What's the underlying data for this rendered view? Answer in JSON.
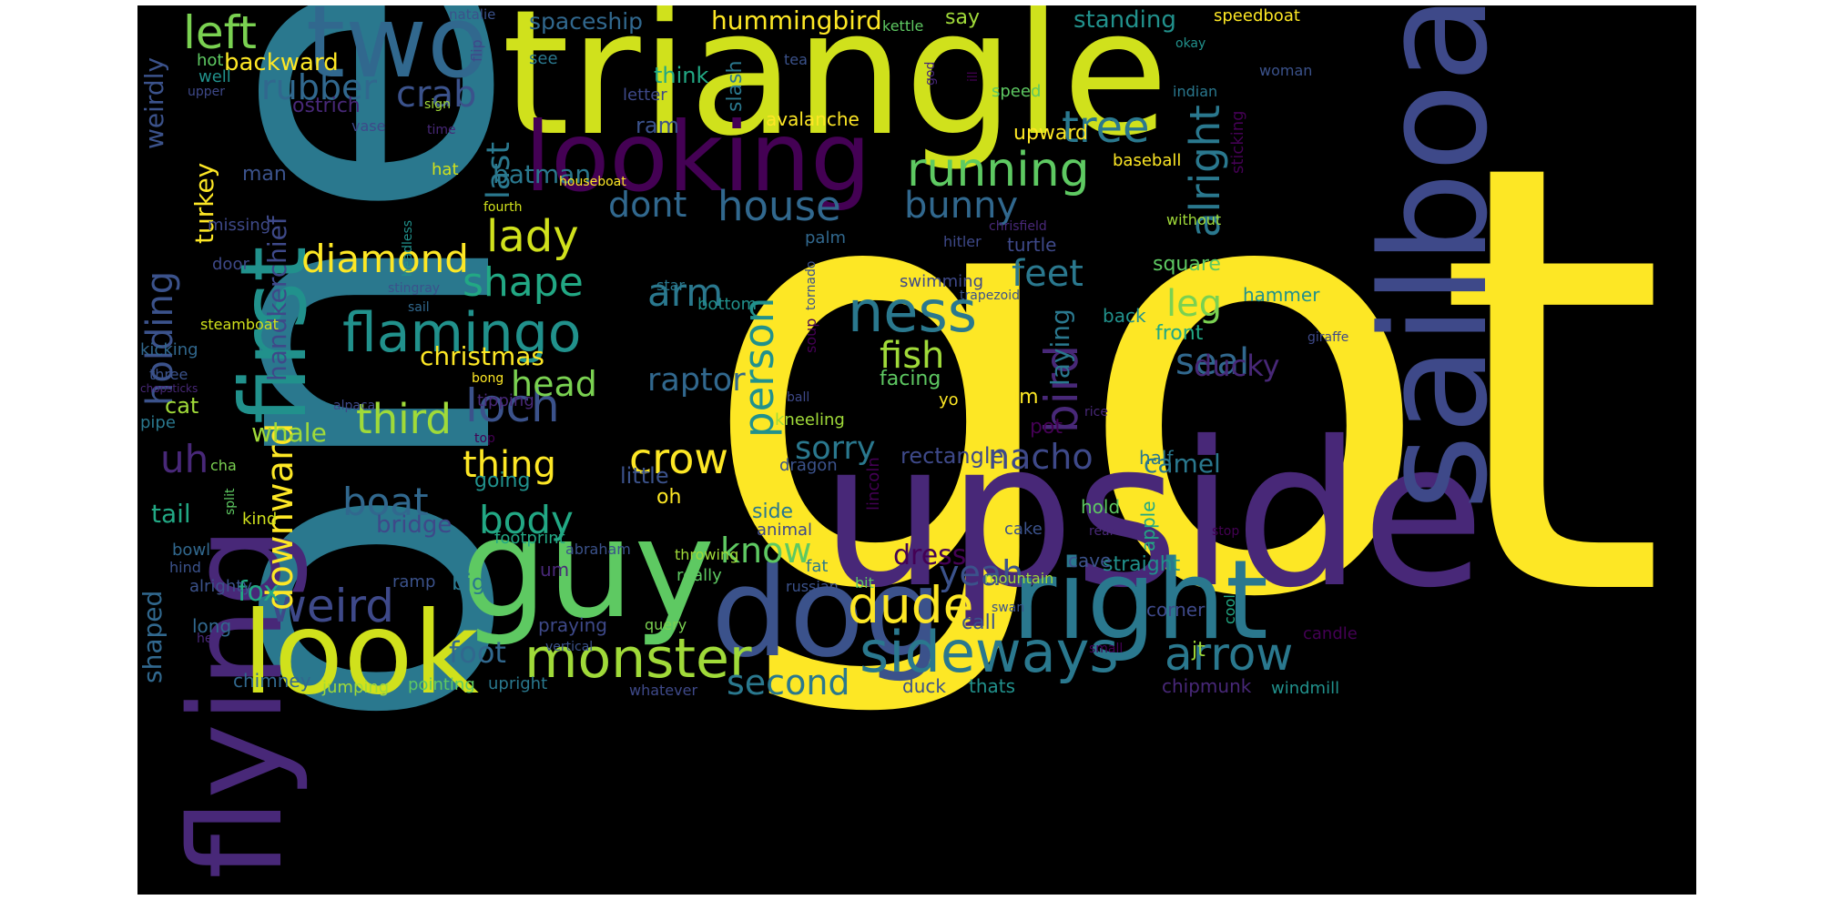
{
  "words": [
    {
      "text": "got",
      "color": "#fde725"
    },
    {
      "text": "one",
      "color": "#2a788e"
    },
    {
      "text": "upside",
      "color": "#482878"
    },
    {
      "text": "triangle",
      "color": "#d0e11c"
    },
    {
      "text": "guy",
      "color": "#5ec962"
    },
    {
      "text": "sailboat",
      "color": "#3e4989"
    },
    {
      "text": "flying",
      "color": "#482878"
    },
    {
      "text": "dog",
      "color": "#3b528b"
    },
    {
      "text": "look",
      "color": "#d0e11c"
    },
    {
      "text": "right",
      "color": "#2a788e"
    },
    {
      "text": "two",
      "color": "#31688e"
    },
    {
      "text": "looking",
      "color": "#440154"
    },
    {
      "text": "first",
      "color": "#21918c"
    },
    {
      "text": "monster",
      "color": "#a0da39"
    },
    {
      "text": "sideways",
      "color": "#2a788e"
    },
    {
      "text": "dude",
      "color": "#fde725"
    },
    {
      "text": "flamingo",
      "color": "#21918c"
    },
    {
      "text": "ness",
      "color": "#2a788e"
    },
    {
      "text": "running",
      "color": "#5ec962"
    },
    {
      "text": "house",
      "color": "#31688e"
    },
    {
      "text": "weird",
      "color": "#3e4989"
    },
    {
      "text": "arrow",
      "color": "#2a788e"
    },
    {
      "text": "left",
      "color": "#7ad151"
    },
    {
      "text": "loch",
      "color": "#3b528b"
    },
    {
      "text": "tree",
      "color": "#2a788e"
    },
    {
      "text": "lady",
      "color": "#d0e11c"
    },
    {
      "text": "third",
      "color": "#a0da39"
    },
    {
      "text": "diamond",
      "color": "#fde725"
    },
    {
      "text": "shape",
      "color": "#22a884"
    },
    {
      "text": "crow",
      "color": "#fde725"
    },
    {
      "text": "alright",
      "color": "#2a788e"
    },
    {
      "text": "holding",
      "color": "#3b528b"
    },
    {
      "text": "downward",
      "color": "#fde725"
    },
    {
      "text": "bird",
      "color": "#482878"
    },
    {
      "text": "person",
      "color": "#21918c"
    },
    {
      "text": "boat",
      "color": "#31688e"
    },
    {
      "text": "body",
      "color": "#22a884"
    },
    {
      "text": "arm",
      "color": "#2a788e"
    },
    {
      "text": "dont",
      "color": "#31688e"
    },
    {
      "text": "bunny",
      "color": "#31688e"
    },
    {
      "text": "thing",
      "color": "#fde725"
    },
    {
      "text": "head",
      "color": "#7ad151"
    },
    {
      "text": "crab",
      "color": "#3b528b"
    },
    {
      "text": "rubber",
      "color": "#31688e"
    },
    {
      "text": "fish",
      "color": "#a0da39"
    },
    {
      "text": "feet",
      "color": "#2a788e"
    },
    {
      "text": "seal",
      "color": "#31688e"
    },
    {
      "text": "leg",
      "color": "#7ad151"
    },
    {
      "text": "foot",
      "color": "#31688e"
    },
    {
      "text": "know",
      "color": "#5ec962"
    },
    {
      "text": "second",
      "color": "#2a788e"
    },
    {
      "text": "yeah",
      "color": "#3b528b"
    },
    {
      "text": "nacho",
      "color": "#3e4989"
    },
    {
      "text": "sorry",
      "color": "#2a788e"
    },
    {
      "text": "raptor",
      "color": "#31688e"
    },
    {
      "text": "last",
      "color": "#2a788e"
    },
    {
      "text": "hummingbird",
      "color": "#fde725"
    },
    {
      "text": "spaceship",
      "color": "#31688e"
    },
    {
      "text": "standing",
      "color": "#21918c"
    },
    {
      "text": "handkerchief",
      "color": "#3e4989"
    },
    {
      "text": "turkey",
      "color": "#fde725"
    },
    {
      "text": "weirdly",
      "color": "#3b528b"
    },
    {
      "text": "shaped",
      "color": "#31688e"
    },
    {
      "text": "ducky",
      "color": "#482878"
    },
    {
      "text": "dress",
      "color": "#440154"
    },
    {
      "text": "christmas",
      "color": "#fde725"
    },
    {
      "text": "laying",
      "color": "#2a788e"
    },
    {
      "text": "uh",
      "color": "#482878"
    },
    {
      "text": "batman",
      "color": "#2a788e"
    },
    {
      "text": "ostrich",
      "color": "#482878"
    },
    {
      "text": "backward",
      "color": "#fde725"
    },
    {
      "text": "fox",
      "color": "#22a884"
    },
    {
      "text": "tail",
      "color": "#22a884"
    },
    {
      "text": "whale",
      "color": "#a0da39"
    },
    {
      "text": "cat",
      "color": "#a0da39"
    },
    {
      "text": "big",
      "color": "#2a788e"
    },
    {
      "text": "bridge",
      "color": "#3e4989"
    },
    {
      "text": "camel",
      "color": "#2a788e"
    },
    {
      "text": "rectangle",
      "color": "#3e4989"
    },
    {
      "text": "square",
      "color": "#5ec962"
    },
    {
      "text": "upward",
      "color": "#fde725"
    },
    {
      "text": "think",
      "color": "#22a884"
    },
    {
      "text": "ram",
      "color": "#3b528b"
    },
    {
      "text": "man",
      "color": "#3b528b"
    },
    {
      "text": "facing",
      "color": "#5ec962"
    },
    {
      "text": "pot",
      "color": "#440154"
    },
    {
      "text": "im",
      "color": "#fde725"
    },
    {
      "text": "straight",
      "color": "#21918c"
    },
    {
      "text": "call",
      "color": "#3b528b"
    },
    {
      "text": "jt",
      "color": "#a0da39"
    },
    {
      "text": "thats",
      "color": "#21918c"
    },
    {
      "text": "duck",
      "color": "#3b528b"
    },
    {
      "text": "chipmunk",
      "color": "#482878"
    },
    {
      "text": "candle",
      "color": "#440154"
    },
    {
      "text": "windmill",
      "color": "#21918c"
    },
    {
      "text": "corner",
      "color": "#3e4989"
    },
    {
      "text": "cave",
      "color": "#3b528b"
    },
    {
      "text": "hold",
      "color": "#5ec962"
    },
    {
      "text": "half",
      "color": "#2a788e"
    },
    {
      "text": "apple",
      "color": "#22a884"
    },
    {
      "text": "rear",
      "color": "#482878"
    },
    {
      "text": "stop",
      "color": "#440154"
    },
    {
      "text": "cool",
      "color": "#22a884"
    },
    {
      "text": "small",
      "color": "#440154"
    },
    {
      "text": "cake",
      "color": "#3b528b"
    },
    {
      "text": "front",
      "color": "#22a884"
    },
    {
      "text": "hammer",
      "color": "#21918c"
    },
    {
      "text": "back",
      "color": "#21918c"
    },
    {
      "text": "turtle",
      "color": "#3e4989"
    },
    {
      "text": "hitler",
      "color": "#3e4989"
    },
    {
      "text": "without",
      "color": "#a0da39"
    },
    {
      "text": "chrisfield",
      "color": "#482878"
    },
    {
      "text": "baseball",
      "color": "#fde725"
    },
    {
      "text": "sticking",
      "color": "#440154"
    },
    {
      "text": "indian",
      "color": "#2a788e"
    },
    {
      "text": "woman",
      "color": "#3b528b"
    },
    {
      "text": "speedboat",
      "color": "#fde725"
    },
    {
      "text": "okay",
      "color": "#21918c"
    },
    {
      "text": "speed",
      "color": "#5ec962"
    },
    {
      "text": "god",
      "color": "#482878"
    },
    {
      "text": "ill",
      "color": "#440154"
    },
    {
      "text": "kettle",
      "color": "#5ec962"
    },
    {
      "text": "tea",
      "color": "#3b528b"
    },
    {
      "text": "slash",
      "color": "#2a788e"
    },
    {
      "text": "avalanche",
      "color": "#fde725"
    },
    {
      "text": "say",
      "color": "#a0da39"
    },
    {
      "text": "natalie",
      "color": "#3b528b"
    },
    {
      "text": "flip",
      "color": "#3e4989"
    },
    {
      "text": "see",
      "color": "#2a788e"
    },
    {
      "text": "letter",
      "color": "#3e4989"
    },
    {
      "text": "sign",
      "color": "#a0da39"
    },
    {
      "text": "time",
      "color": "#482878"
    },
    {
      "text": "vase",
      "color": "#3e4989"
    },
    {
      "text": "upper",
      "color": "#3e4989"
    },
    {
      "text": "hot",
      "color": "#5ec962"
    },
    {
      "text": "well",
      "color": "#21918c"
    },
    {
      "text": "hat",
      "color": "#d0e11c"
    },
    {
      "text": "headless",
      "color": "#21918c"
    },
    {
      "text": "fourth",
      "color": "#d0e11c"
    },
    {
      "text": "houseboat",
      "color": "#fde725"
    },
    {
      "text": "missing",
      "color": "#3e4989"
    },
    {
      "text": "door",
      "color": "#3e4989"
    },
    {
      "text": "steamboat",
      "color": "#d0e11c"
    },
    {
      "text": "kicking",
      "color": "#31688e"
    },
    {
      "text": "three",
      "color": "#3b528b"
    },
    {
      "text": "chopsticks",
      "color": "#482878"
    },
    {
      "text": "pipe",
      "color": "#2a788e"
    },
    {
      "text": "stingray",
      "color": "#3b528b"
    },
    {
      "text": "sail",
      "color": "#31688e"
    },
    {
      "text": "star",
      "color": "#2a788e"
    },
    {
      "text": "bottom",
      "color": "#21918c"
    },
    {
      "text": "palm",
      "color": "#31688e"
    },
    {
      "text": "swimming",
      "color": "#3e4989"
    },
    {
      "text": "trapezoid",
      "color": "#3b528b"
    },
    {
      "text": "giraffe",
      "color": "#3e4989"
    },
    {
      "text": "rice",
      "color": "#482878"
    },
    {
      "text": "tornado",
      "color": "#3b528b"
    },
    {
      "text": "soup",
      "color": "#440154"
    },
    {
      "text": "ball",
      "color": "#3e4989"
    },
    {
      "text": "kneeling",
      "color": "#a0da39"
    },
    {
      "text": "yo",
      "color": "#fde725"
    },
    {
      "text": "tipping",
      "color": "#482878"
    },
    {
      "text": "bong",
      "color": "#fde725"
    },
    {
      "text": "alpaca",
      "color": "#3e4989"
    },
    {
      "text": "top",
      "color": "#440154"
    },
    {
      "text": "going",
      "color": "#21918c"
    },
    {
      "text": "little",
      "color": "#3b528b"
    },
    {
      "text": "oh",
      "color": "#fde725"
    },
    {
      "text": "dragon",
      "color": "#3b528b"
    },
    {
      "text": "lincoln",
      "color": "#440154"
    },
    {
      "text": "side",
      "color": "#2a788e"
    },
    {
      "text": "animal",
      "color": "#3e4989"
    },
    {
      "text": "cha",
      "color": "#7ad151"
    },
    {
      "text": "split",
      "color": "#5ec962"
    },
    {
      "text": "kind",
      "color": "#d0e11c"
    },
    {
      "text": "bowl",
      "color": "#31688e"
    },
    {
      "text": "hind",
      "color": "#3b528b"
    },
    {
      "text": "alrighty",
      "color": "#3b528b"
    },
    {
      "text": "ramp",
      "color": "#3b528b"
    },
    {
      "text": "um",
      "color": "#482878"
    },
    {
      "text": "footprint",
      "color": "#22a884"
    },
    {
      "text": "abraham",
      "color": "#3b528b"
    },
    {
      "text": "throwing",
      "color": "#a0da39"
    },
    {
      "text": "really",
      "color": "#5ec962"
    },
    {
      "text": "russian",
      "color": "#3b528b"
    },
    {
      "text": "bit",
      "color": "#5ec962"
    },
    {
      "text": "mountain",
      "color": "#a0da39"
    },
    {
      "text": "swan",
      "color": "#3b528b"
    },
    {
      "text": "fat",
      "color": "#2a788e"
    },
    {
      "text": "long",
      "color": "#31688e"
    },
    {
      "text": "hes",
      "color": "#482878"
    },
    {
      "text": "praying",
      "color": "#3e4989"
    },
    {
      "text": "query",
      "color": "#7ad151"
    },
    {
      "text": "vertical",
      "color": "#3b528b"
    },
    {
      "text": "chimney",
      "color": "#31688e"
    },
    {
      "text": "jumping",
      "color": "#a0da39"
    },
    {
      "text": "pointing",
      "color": "#5ec962"
    },
    {
      "text": "upright",
      "color": "#2a788e"
    },
    {
      "text": "whatever",
      "color": "#3e4989"
    }
  ]
}
